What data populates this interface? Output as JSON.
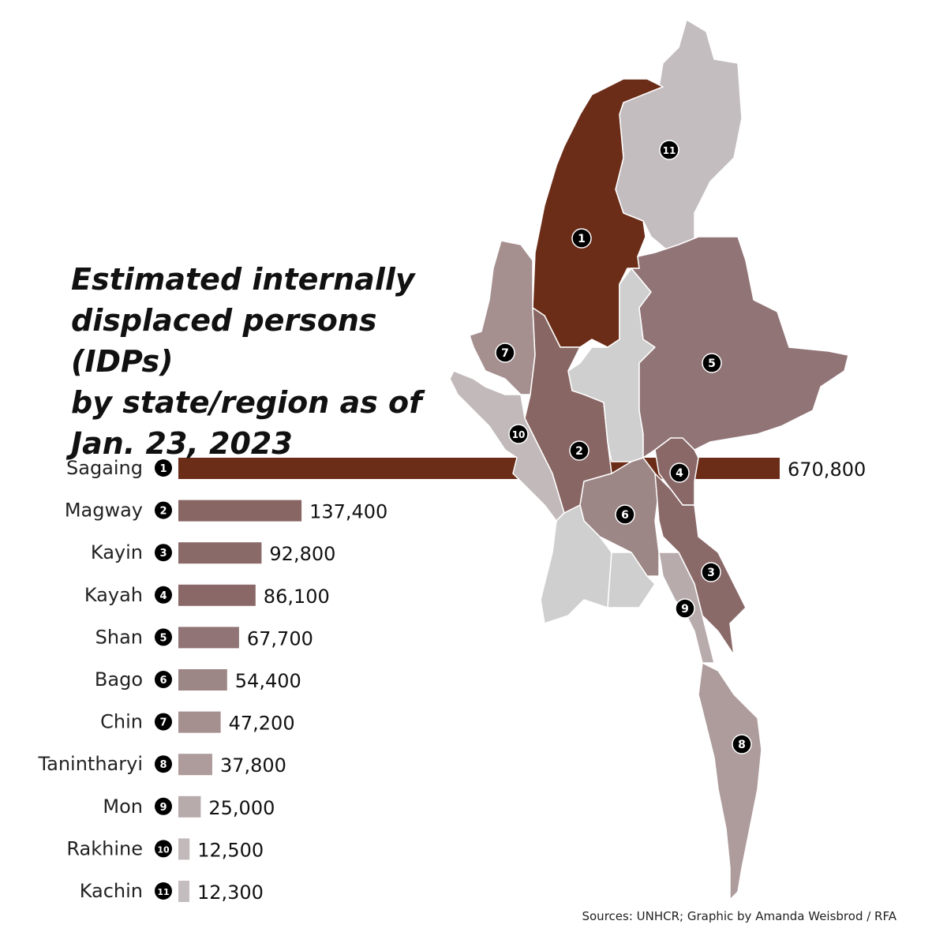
{
  "chart_data": {
    "type": "bar",
    "orientation": "horizontal",
    "title": "Estimated internally displaced persons (IDPs) by state/region as of Jan. 23, 2023",
    "title_lines": [
      "Estimated internally",
      "displaced persons (IDPs)",
      "by state/region as of",
      "Jan. 23, 2023"
    ],
    "categories": [
      "Sagaing",
      "Magway",
      "Kayin",
      "Kayah",
      "Shan",
      "Bago",
      "Chin",
      "Tanintharyi",
      "Mon",
      "Rakhine",
      "Kachin"
    ],
    "numbers": [
      "1",
      "2",
      "3",
      "4",
      "5",
      "6",
      "7",
      "8",
      "9",
      "10",
      "11"
    ],
    "values": [
      670800,
      137400,
      92800,
      86100,
      67700,
      54400,
      47200,
      37800,
      25000,
      12500,
      12300
    ],
    "value_labels": [
      "670,800",
      "137,400",
      "92,800",
      "86,100",
      "67,700",
      "54,400",
      "47,200",
      "37,800",
      "25,000",
      "12,500",
      "12,300"
    ],
    "colors": [
      "#6b2d18",
      "#886664",
      "#8a6a69",
      "#8a6868",
      "#917476",
      "#9d8686",
      "#a58f8f",
      "#ae9b9b",
      "#b8abab",
      "#c2b9ba",
      "#c4bdbf"
    ],
    "other_region_color": "#cfcfcf",
    "map": "choropleth map of Myanmar states/regions, numbered markers",
    "source": "Sources: UNHCR; Graphic by Amanda Weisbrod / RFA"
  }
}
